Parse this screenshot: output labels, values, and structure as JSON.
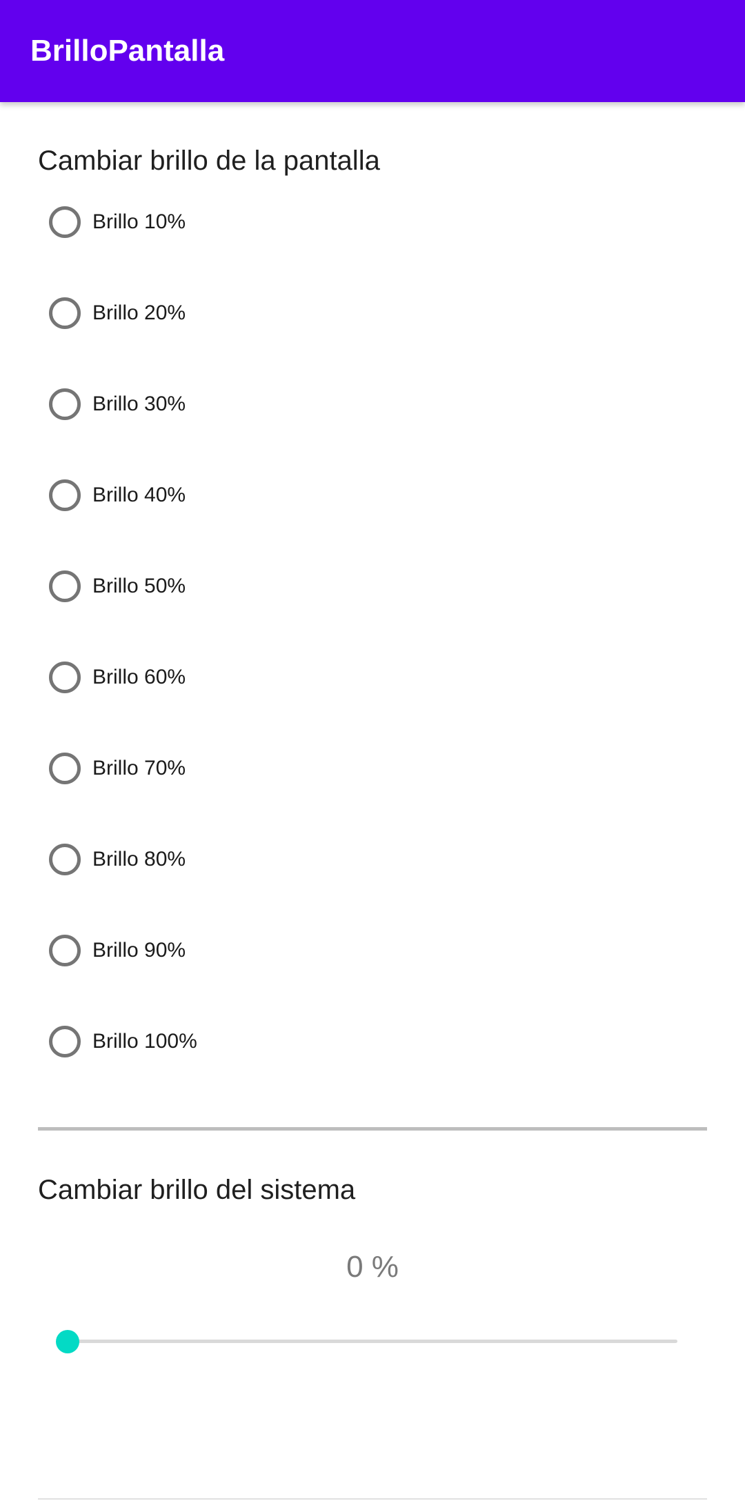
{
  "app_bar": {
    "title": "BrilloPantalla",
    "color": "#6200ee"
  },
  "screen_brightness": {
    "title": "Cambiar brillo de la pantalla",
    "options": [
      {
        "label": "Brillo 10%",
        "selected": false
      },
      {
        "label": "Brillo 20%",
        "selected": false
      },
      {
        "label": "Brillo 30%",
        "selected": false
      },
      {
        "label": "Brillo 40%",
        "selected": false
      },
      {
        "label": "Brillo 50%",
        "selected": false
      },
      {
        "label": "Brillo 60%",
        "selected": false
      },
      {
        "label": "Brillo 70%",
        "selected": false
      },
      {
        "label": "Brillo 80%",
        "selected": false
      },
      {
        "label": "Brillo 90%",
        "selected": false
      },
      {
        "label": "Brillo 100%",
        "selected": false
      }
    ]
  },
  "system_brightness": {
    "title": "Cambiar brillo del sistema",
    "value_label": "0 %",
    "slider_value": 0,
    "slider_max": 100,
    "accent_color": "#03dac5"
  }
}
